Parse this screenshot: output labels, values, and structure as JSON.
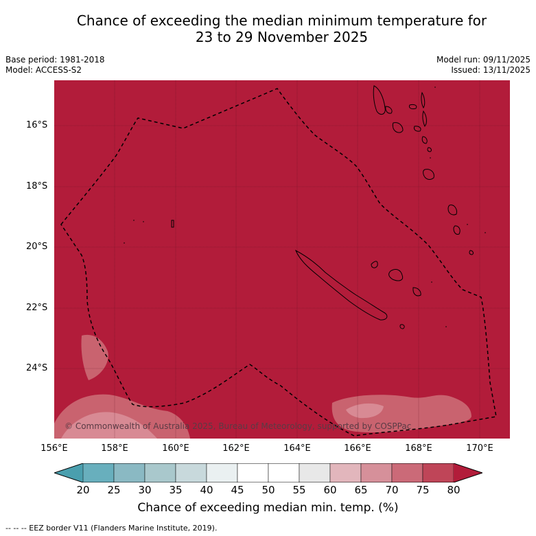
{
  "title_line1": "Chance of exceeding the median minimum temperature for",
  "title_line2": "23 to 29 November 2025",
  "meta": {
    "base_period": "Base period: 1981-2018",
    "model": "Model: ACCESS-S2",
    "model_run": "Model run: 09/11/2025",
    "issued": "Issued: 13/11/2025"
  },
  "map": {
    "copyright": "© Commonwealth of Australia 2025, Bureau of Meteorology, supported by COSPPac",
    "lat_labels": [
      "16°S",
      "18°S",
      "20°S",
      "22°S",
      "24°S"
    ],
    "lon_labels": [
      "156°E",
      "158°E",
      "160°E",
      "162°E",
      "164°E",
      "166°E",
      "168°E",
      "170°E"
    ],
    "background_color": "#b21c3a"
  },
  "colorbar": {
    "ticks": [
      "20",
      "25",
      "30",
      "35",
      "40",
      "45",
      "50",
      "55",
      "60",
      "65",
      "70",
      "75",
      "80"
    ],
    "colors": [
      "#4a9fae",
      "#68afbd",
      "#8ab9c3",
      "#a9c8cc",
      "#c8d9dc",
      "#eaf0f1",
      "#ffffff",
      "#ffffff",
      "#e8e8e8",
      "#e2b6bc",
      "#d6909a",
      "#cb6a78",
      "#bf4558",
      "#b21c3a"
    ],
    "label": "Chance of exceeding median min. temp. (%)"
  },
  "footnote": "--  --  -- EEZ border V11 (Flanders Marine Institute, 2019)."
}
